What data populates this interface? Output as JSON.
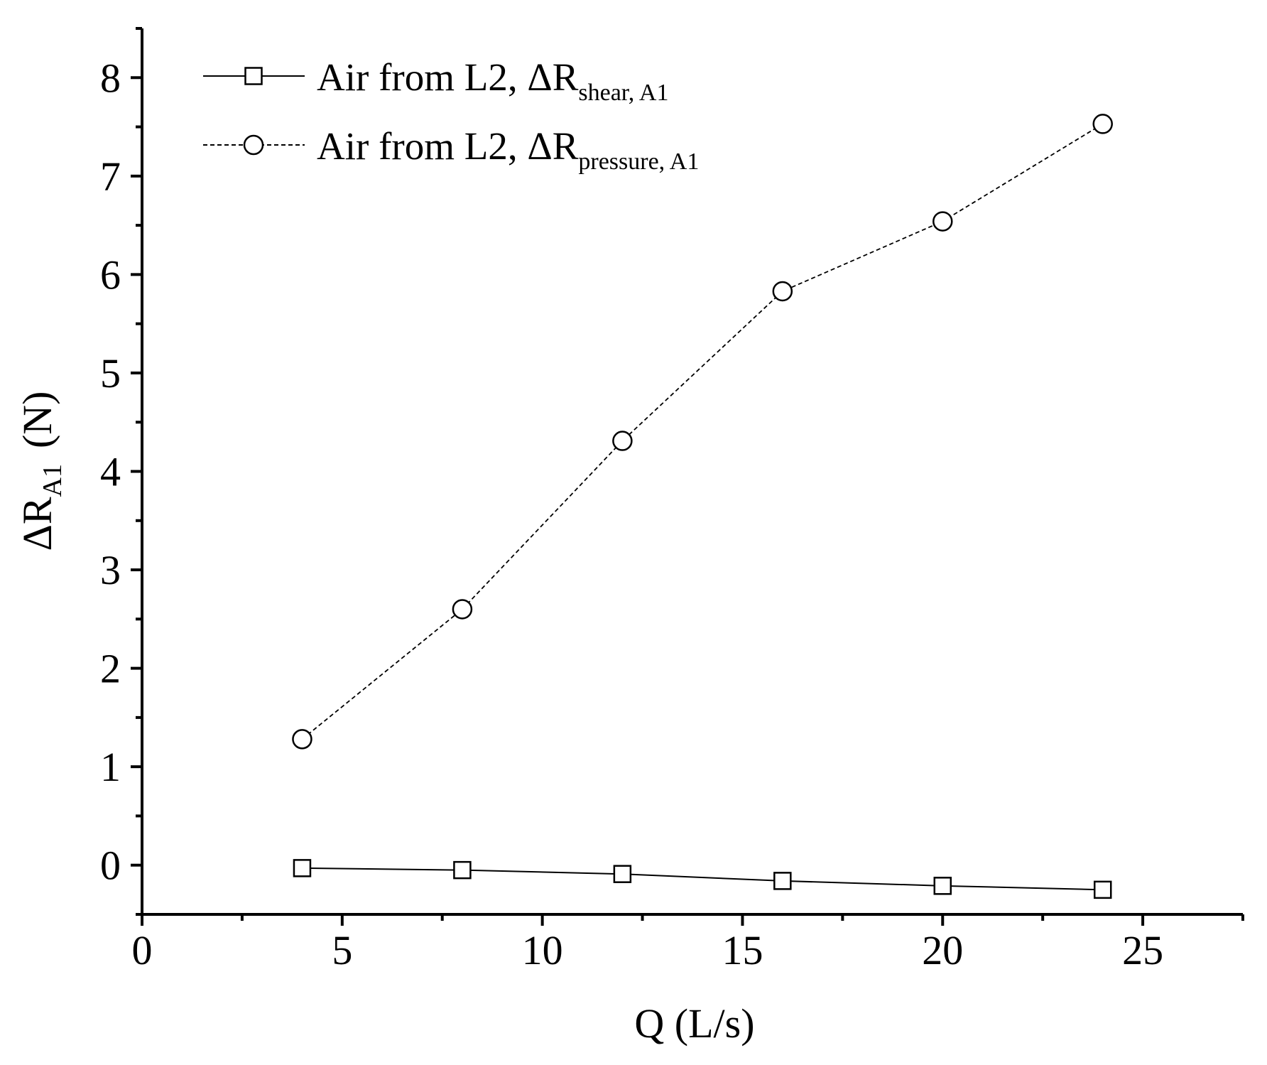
{
  "chart_data": {
    "type": "line",
    "xlabel": "Q  (L/s)",
    "ylabel": [
      "ΔR",
      "A1",
      "(N)"
    ],
    "x": [
      4,
      8,
      12,
      16,
      20,
      24
    ],
    "series": [
      {
        "name": "Air from L2, ΔR",
        "name_subscript": "shear, A1",
        "color": "#000000",
        "linestyle": "solid",
        "marker": "square",
        "values": [
          -0.03,
          -0.05,
          -0.09,
          -0.16,
          -0.21,
          -0.25
        ]
      },
      {
        "name": "Air from L2, ΔR",
        "name_subscript": "pressure, A1",
        "color": "#000000",
        "linestyle": "dashed",
        "marker": "circle",
        "values": [
          1.28,
          2.6,
          4.31,
          5.83,
          6.54,
          7.53
        ]
      }
    ],
    "xlim": [
      0,
      27.5
    ],
    "xticks": [
      0,
      5,
      10,
      15,
      20,
      25
    ],
    "xminor_ticks": [
      2.5,
      7.5,
      12.5,
      17.5,
      22.5,
      27.5
    ],
    "ylim": [
      -0.5,
      8.5
    ],
    "yticks": [
      0,
      1,
      2,
      3,
      4,
      5,
      6,
      7,
      8
    ],
    "yminor_ticks": [
      -0.5,
      0.5,
      1.5,
      2.5,
      3.5,
      4.5,
      5.5,
      6.5,
      7.5,
      8.5
    ],
    "legend": "upper left",
    "grid": false
  }
}
